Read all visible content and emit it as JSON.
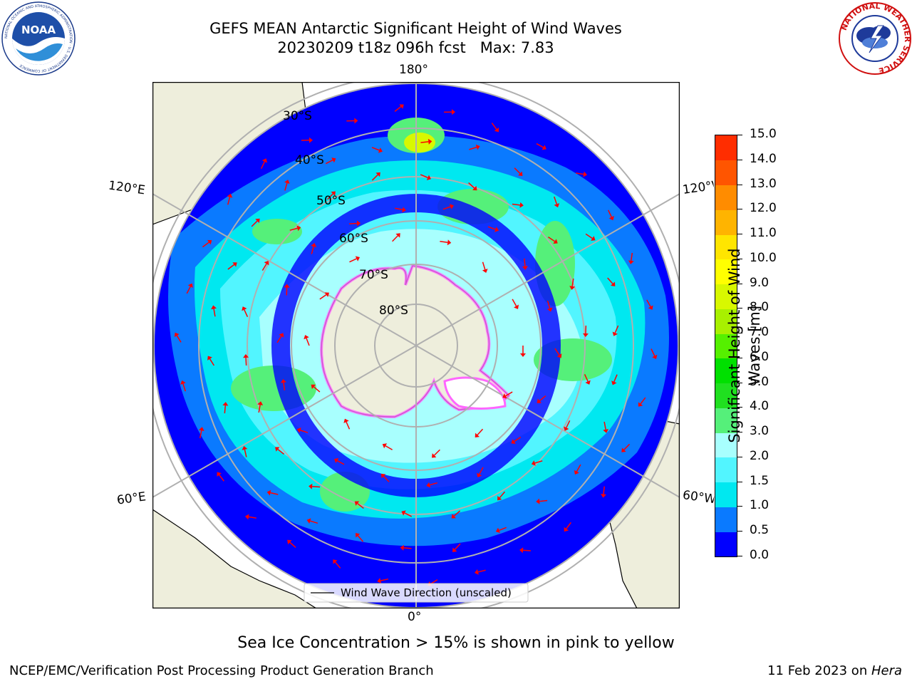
{
  "title": {
    "line1": "GEFS MEAN Antarctic Significant Height of Wind Waves",
    "line2": "20230209 t18z 096h fcst   Max: 7.83"
  },
  "logos": {
    "left": {
      "name": "noaa-logo",
      "text": "NOAA",
      "ring_text": "NATIONAL OCEANIC AND ATMOSPHERIC ADMINISTRATION · U.S. DEPARTMENT OF COMMERCE"
    },
    "right": {
      "name": "nws-logo",
      "ring_text": "NATIONAL WEATHER SERVICE"
    }
  },
  "map": {
    "projection": "south-polar-stereographic",
    "longitude_labels": {
      "top": "180°",
      "bottom": "0°",
      "upper_left": "120°E",
      "upper_right": "120°W",
      "lower_left": "60°E",
      "lower_right": "60°W"
    },
    "latitude_labels": [
      "30°S",
      "40°S",
      "50°S",
      "60°S",
      "70°S",
      "80°S"
    ],
    "legend_label": "Wind Wave Direction (unscaled)",
    "colors": {
      "land": "#eeeedc",
      "coast": "#000000",
      "grid": "#b0b0b0",
      "arrow": "#ff0000",
      "ice": "#ff66ff"
    }
  },
  "colorbar": {
    "label": "Significant Height of Wind Waves [m]",
    "ticks": [
      "0.0",
      "0.5",
      "1.0",
      "1.5",
      "2.0",
      "3.0",
      "4.0",
      "5.0",
      "6.0",
      "7.0",
      "8.0",
      "9.0",
      "10.0",
      "11.0",
      "12.0",
      "13.0",
      "14.0",
      "15.0"
    ],
    "colors": [
      "#0000ff",
      "#0a7aff",
      "#00e8f0",
      "#52f5ff",
      "#a8fffe",
      "#55f07a",
      "#20e020",
      "#00e000",
      "#55f000",
      "#a8f000",
      "#d8f800",
      "#ffff00",
      "#ffe500",
      "#ffb400",
      "#ff8c00",
      "#ff5500",
      "#ff2d00",
      "#ff0000"
    ]
  },
  "note": "Sea Ice Concentration > 15% is shown in pink to yellow",
  "footer": {
    "credit": "NCEP/EMC/Verification Post Processing Product Generation Branch",
    "date": "11 Feb 2023 on ",
    "machine": "Hera"
  }
}
